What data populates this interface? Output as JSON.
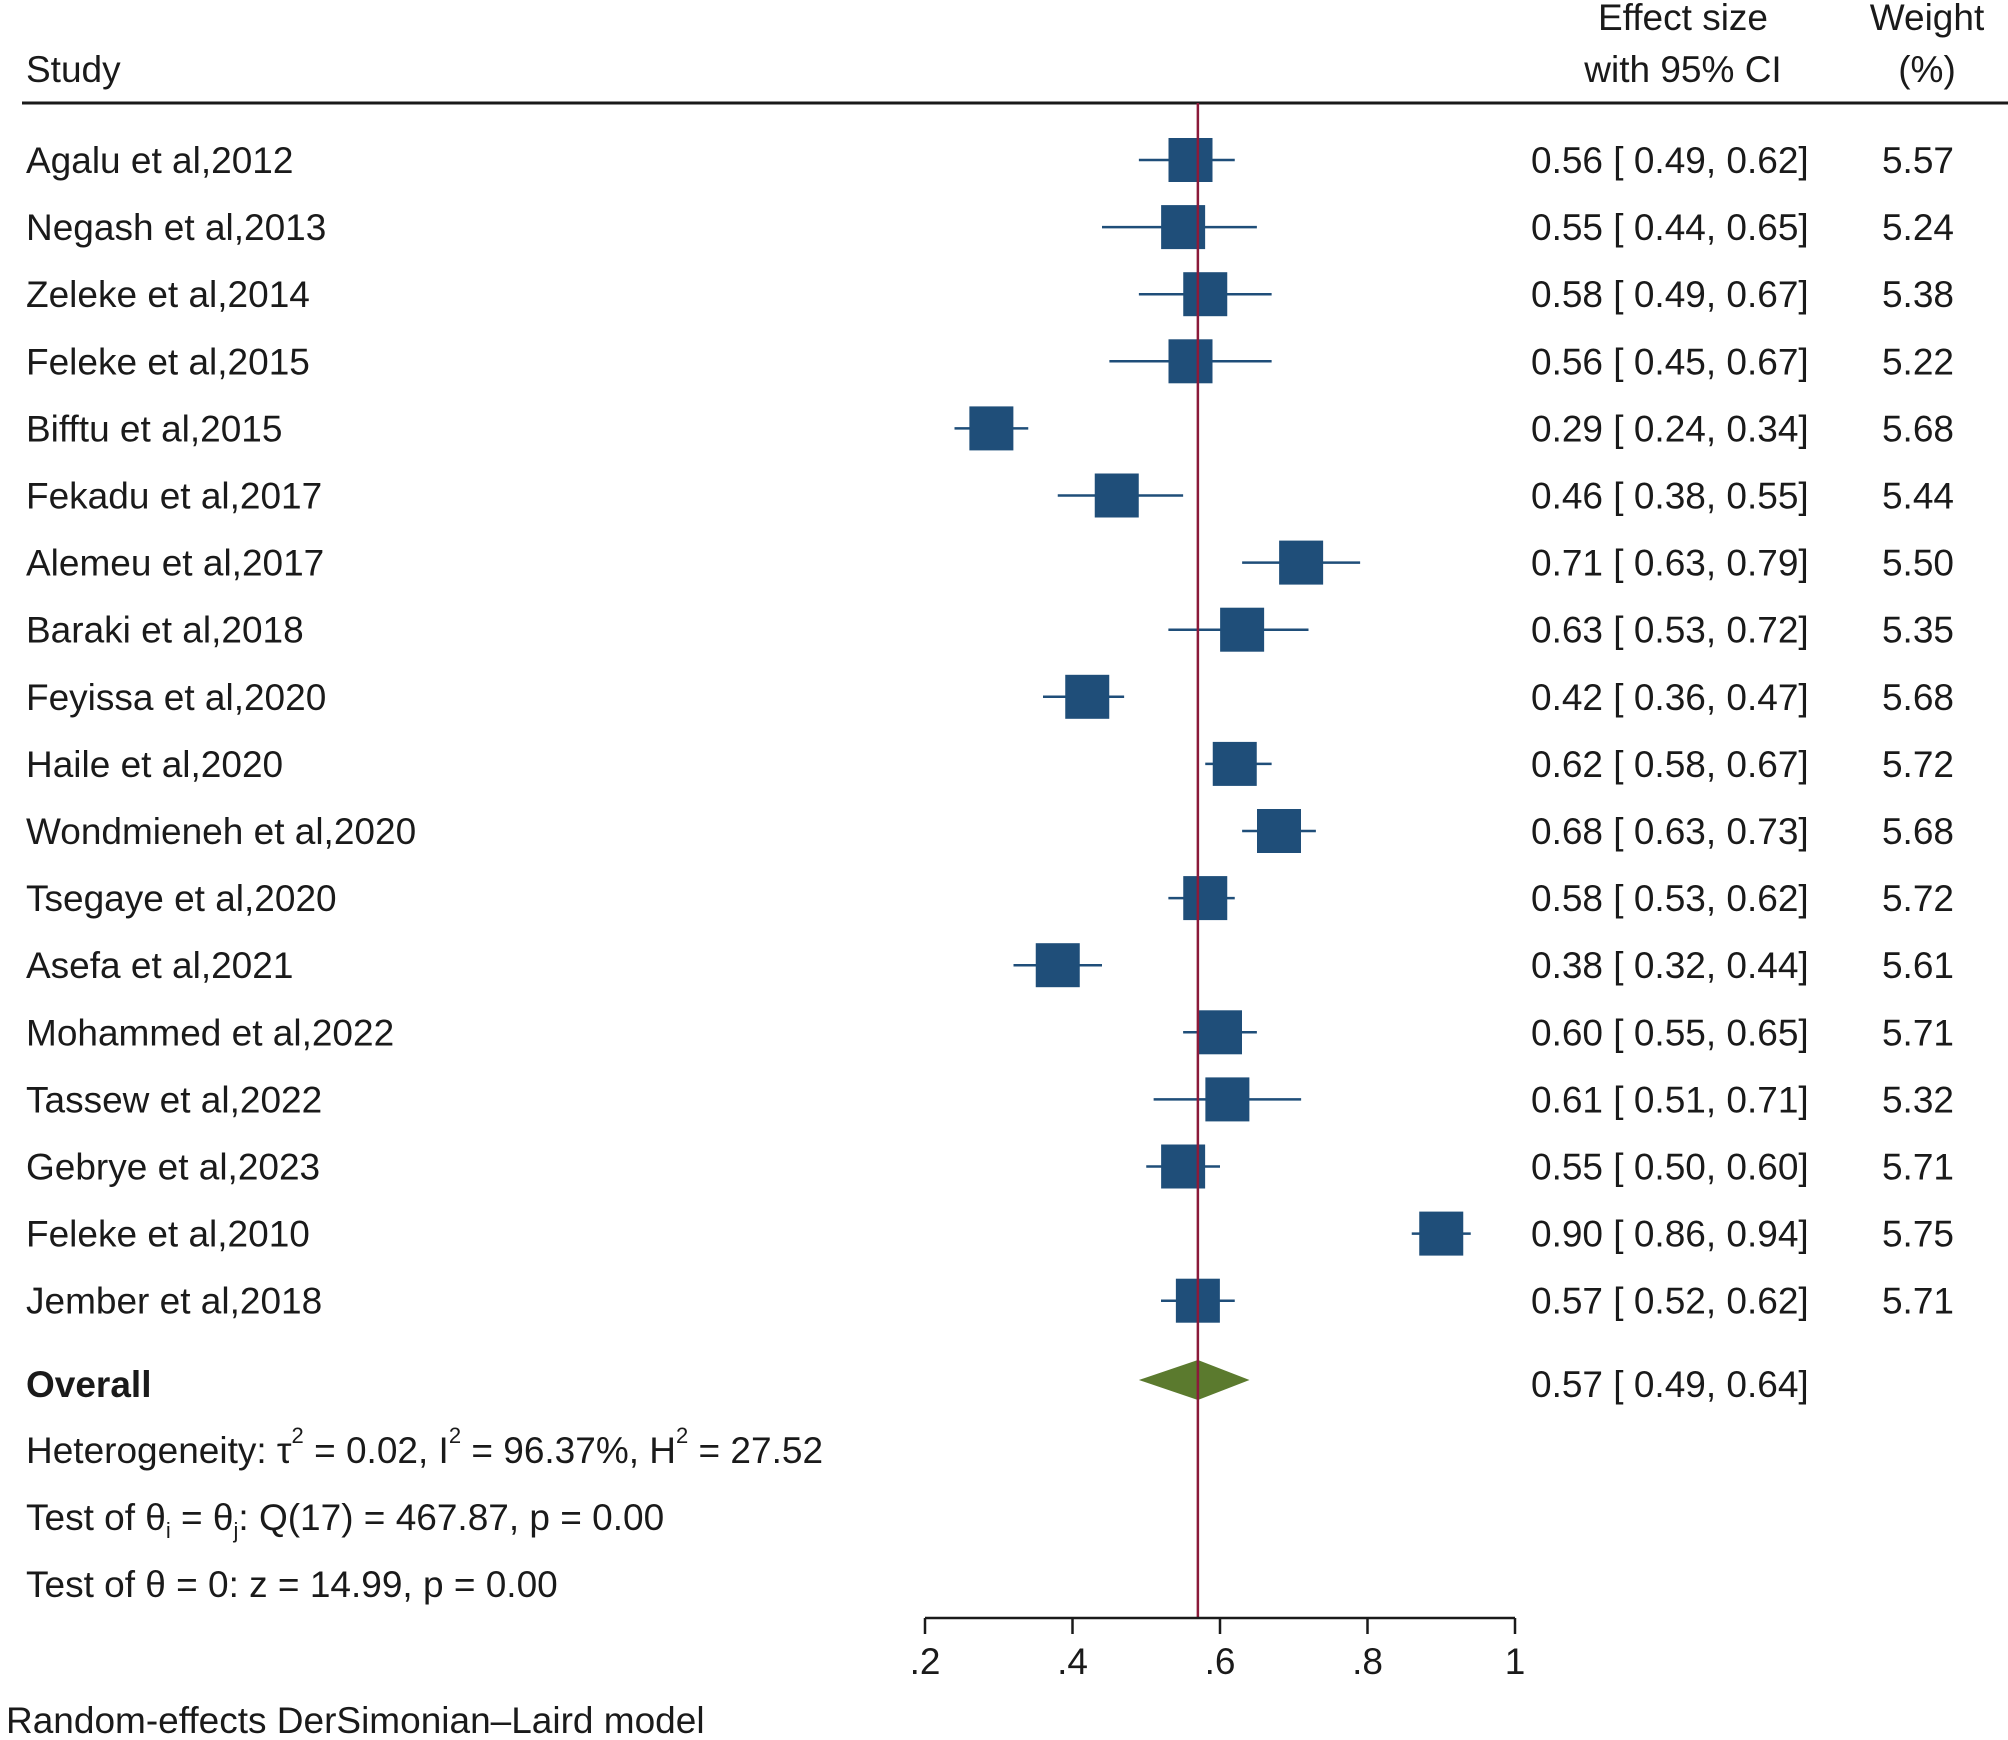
{
  "chart_data": {
    "type": "forest",
    "header": {
      "study": "Study",
      "effect_line1": "Effect size",
      "effect_line2": "with 95% CI",
      "weight_line1": "Weight",
      "weight_line2": "(%)"
    },
    "studies": [
      {
        "name": "Agalu et al,2012",
        "es": 0.56,
        "lo": 0.49,
        "hi": 0.62,
        "ci": "0.56 [ 0.49,  0.62]",
        "weight": "5.57"
      },
      {
        "name": "Negash et al,2013",
        "es": 0.55,
        "lo": 0.44,
        "hi": 0.65,
        "ci": "0.55 [ 0.44,  0.65]",
        "weight": "5.24"
      },
      {
        "name": "Zeleke et al,2014",
        "es": 0.58,
        "lo": 0.49,
        "hi": 0.67,
        "ci": "0.58 [ 0.49,  0.67]",
        "weight": "5.38"
      },
      {
        "name": "Feleke et al,2015",
        "es": 0.56,
        "lo": 0.45,
        "hi": 0.67,
        "ci": "0.56 [ 0.45,  0.67]",
        "weight": "5.22"
      },
      {
        "name": "Bifftu et al,2015",
        "es": 0.29,
        "lo": 0.24,
        "hi": 0.34,
        "ci": "0.29 [ 0.24,  0.34]",
        "weight": "5.68"
      },
      {
        "name": "Fekadu et al,2017",
        "es": 0.46,
        "lo": 0.38,
        "hi": 0.55,
        "ci": "0.46 [ 0.38,  0.55]",
        "weight": "5.44"
      },
      {
        "name": "Alemeu et al,2017",
        "es": 0.71,
        "lo": 0.63,
        "hi": 0.79,
        "ci": "0.71 [ 0.63,  0.79]",
        "weight": "5.50"
      },
      {
        "name": "Baraki et al,2018",
        "es": 0.63,
        "lo": 0.53,
        "hi": 0.72,
        "ci": "0.63 [ 0.53,  0.72]",
        "weight": "5.35"
      },
      {
        "name": "Feyissa et al,2020",
        "es": 0.42,
        "lo": 0.36,
        "hi": 0.47,
        "ci": "0.42 [ 0.36,  0.47]",
        "weight": "5.68"
      },
      {
        "name": "Haile et al,2020",
        "es": 0.62,
        "lo": 0.58,
        "hi": 0.67,
        "ci": "0.62 [ 0.58,  0.67]",
        "weight": "5.72"
      },
      {
        "name": "Wondmieneh et al,2020",
        "es": 0.68,
        "lo": 0.63,
        "hi": 0.73,
        "ci": "0.68 [ 0.63,  0.73]",
        "weight": "5.68"
      },
      {
        "name": "Tsegaye et al,2020",
        "es": 0.58,
        "lo": 0.53,
        "hi": 0.62,
        "ci": "0.58 [ 0.53,  0.62]",
        "weight": "5.72"
      },
      {
        "name": "Asefa et al,2021",
        "es": 0.38,
        "lo": 0.32,
        "hi": 0.44,
        "ci": "0.38 [ 0.32,  0.44]",
        "weight": "5.61"
      },
      {
        "name": "Mohammed et al,2022",
        "es": 0.6,
        "lo": 0.55,
        "hi": 0.65,
        "ci": "0.60 [ 0.55,  0.65]",
        "weight": "5.71"
      },
      {
        "name": "Tassew et al,2022",
        "es": 0.61,
        "lo": 0.51,
        "hi": 0.71,
        "ci": "0.61 [ 0.51,  0.71]",
        "weight": "5.32"
      },
      {
        "name": "Gebrye et al,2023",
        "es": 0.55,
        "lo": 0.5,
        "hi": 0.6,
        "ci": "0.55 [ 0.50,  0.60]",
        "weight": "5.71"
      },
      {
        "name": "Feleke et al,2010",
        "es": 0.9,
        "lo": 0.86,
        "hi": 0.94,
        "ci": "0.90 [ 0.86,  0.94]",
        "weight": "5.75"
      },
      {
        "name": "Jember et al,2018",
        "es": 0.57,
        "lo": 0.52,
        "hi": 0.62,
        "ci": "0.57 [ 0.52,  0.62]",
        "weight": "5.71"
      }
    ],
    "overall": {
      "label": "Overall",
      "es": 0.57,
      "lo": 0.49,
      "hi": 0.64,
      "ci": "0.57 [ 0.49,  0.64]"
    },
    "heterogeneity": {
      "p1": "Heterogeneity: τ",
      "p2": " = 0.02, I",
      "p3": " = 96.37%, H",
      "p4": " = 27.52",
      "sup": "2"
    },
    "test_thetas": {
      "p1": "Test of θ",
      "sub_i": "i",
      "p2": " = θ",
      "sub_j": "j",
      "p3": ": Q(17) = 467.87, p = 0.00"
    },
    "test_zero": "Test of θ = 0: z = 14.99, p = 0.00",
    "x_axis": {
      "range": [
        0.2,
        1.0
      ],
      "ticks": [
        0.2,
        0.4,
        0.6,
        0.8,
        1.0
      ],
      "tick_labels": [
        ".2",
        ".4",
        ".6",
        ".8",
        "1"
      ]
    },
    "reference_line": 0.57,
    "note": "Random-effects DerSimonian–Laird model",
    "colors": {
      "marker": "#1f4e79",
      "diamond": "#5b7a2e",
      "ref_line": "#8b1a3a",
      "text": "#1a1a1a"
    }
  }
}
